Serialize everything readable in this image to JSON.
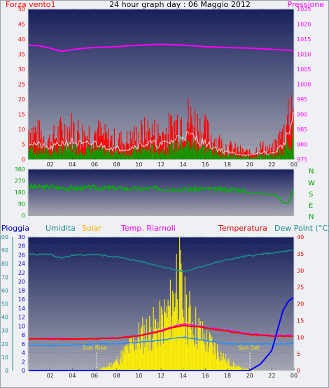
{
  "top": {
    "title": "24 hour graph day : 06 Maggio 2012",
    "left_label": "Forza vento1",
    "right_label": "Pressione"
  },
  "middle": {
    "directions": [
      "N",
      "W",
      "S",
      "E",
      "N"
    ]
  },
  "bottom": {
    "labels": {
      "pioggia": "Pioggia",
      "umidita": "Umidita",
      "solar": "Solar",
      "temp_riarnoli": "Temp. Riarnoli",
      "temperatura": "Temperatura",
      "dew_point": "Dew Point (°C)"
    },
    "sun_rise": "Sun Rise",
    "sun_set": "Sun Set"
  },
  "colors": {
    "bg_top": "#1b2660",
    "bg_bottom": "#9ea0ac",
    "wind": "#ff0000",
    "gust_white": "#d8d8d8",
    "wind_green": "#00a000",
    "pressure": "#ff00ff",
    "direction": "#00b400",
    "humidity": "#1b8a8c",
    "solar": "#ffef00",
    "temp_riarnoli": "#ff00ff",
    "temperature": "#ff0000",
    "dew_point": "#1e90ff",
    "rain": "#0000ff",
    "left_axis_red": "#ff0000",
    "right_axis_magenta": "#ff00ff",
    "right_axis_green": "#00a000"
  },
  "chart_data": [
    {
      "type": "line",
      "title": "24 hour graph day : 06 Maggio 2012",
      "x_ticks": [
        "02",
        "04",
        "06",
        "08",
        "10",
        "12",
        "14",
        "16",
        "18",
        "20",
        "22",
        "00"
      ],
      "left_axis": {
        "label": "Forza vento1",
        "ylim": [
          0,
          50
        ],
        "ticks": [
          0,
          5,
          10,
          15,
          20,
          25,
          30,
          35,
          40,
          45,
          50
        ]
      },
      "right_axis": {
        "label": "Pressione",
        "ylim": [
          975,
          1025
        ],
        "ticks": [
          975,
          980,
          985,
          990,
          995,
          1000,
          1005,
          1010,
          1015,
          1020,
          1025
        ]
      },
      "series": [
        {
          "name": "Pressione",
          "axis": "right",
          "x": [
            0,
            1,
            2,
            3,
            4,
            5,
            6,
            8,
            10,
            12,
            14,
            16,
            18,
            20,
            22,
            23,
            24
          ],
          "values": [
            1013,
            1012.8,
            1012,
            1011,
            1011.5,
            1012,
            1012.2,
            1012.5,
            1013,
            1013.3,
            1013,
            1012.5,
            1012.2,
            1012,
            1011.6,
            1011.4,
            1011.2
          ]
        },
        {
          "name": "Forza vento1",
          "axis": "left",
          "x": [
            0,
            1,
            2,
            3,
            4,
            5,
            6,
            7,
            8,
            9,
            10,
            11,
            12,
            13,
            14,
            15,
            16,
            17,
            18,
            19,
            20,
            21,
            22,
            23,
            24
          ],
          "values": [
            10,
            8,
            6,
            9,
            10,
            8,
            9,
            7,
            6,
            6,
            8,
            9,
            8,
            10,
            14,
            12,
            9,
            6,
            4,
            3,
            2,
            4,
            3,
            8,
            22
          ]
        }
      ]
    },
    {
      "type": "scatter",
      "x_ticks": [
        "02",
        "04",
        "06",
        "08",
        "10",
        "12",
        "14",
        "16",
        "18",
        "20",
        "22",
        "00"
      ],
      "left_axis": {
        "ylim": [
          0,
          360
        ],
        "ticks": [
          0,
          90,
          180,
          270,
          360
        ]
      },
      "right_axis": {
        "ticks": [
          "N",
          "W",
          "S",
          "E",
          "N"
        ]
      },
      "series": [
        {
          "name": "direction",
          "x": [
            0,
            2,
            4,
            6,
            8,
            10,
            12,
            14,
            16,
            18,
            19,
            20,
            21,
            22,
            22.5,
            23,
            23.5,
            24
          ],
          "values": [
            220,
            220,
            210,
            215,
            210,
            205,
            210,
            205,
            205,
            200,
            200,
            170,
            170,
            160,
            150,
            100,
            90,
            220
          ]
        }
      ]
    },
    {
      "type": "line",
      "x_ticks": [
        "02",
        "04",
        "06",
        "08",
        "10",
        "12",
        "14",
        "16",
        "18",
        "20",
        "22",
        "00"
      ],
      "axes": {
        "pioggia": {
          "ylim": [
            0,
            100
          ],
          "ticks": [
            0,
            10,
            20,
            30,
            40,
            50,
            60,
            70,
            80,
            90,
            100
          ]
        },
        "umidita": {
          "ylim": [
            0,
            30
          ],
          "ticks": [
            0,
            2,
            4,
            6,
            8,
            10,
            12,
            14,
            16,
            18,
            20,
            22,
            24,
            26,
            28,
            30
          ]
        },
        "temperature": {
          "ylim": [
            0,
            40
          ],
          "ticks": [
            0,
            5,
            10,
            15,
            20,
            25,
            30,
            35,
            40
          ]
        }
      },
      "series": [
        {
          "name": "Umidita",
          "x": [
            0,
            2,
            3,
            4,
            6,
            8,
            10,
            12,
            13,
            14,
            15,
            16,
            18,
            20,
            22,
            24
          ],
          "values": [
            87,
            87,
            84,
            86,
            87,
            85,
            82,
            78,
            76,
            74,
            76,
            79,
            83,
            86,
            88,
            90
          ]
        },
        {
          "name": "Temp. Riarnoli",
          "x": [
            0,
            2,
            4,
            6,
            8,
            10,
            12,
            13,
            14,
            15,
            16,
            18,
            20,
            22,
            24
          ],
          "values": [
            9.6,
            9.6,
            9.5,
            9.6,
            9.8,
            10.5,
            12,
            13,
            14,
            13.5,
            13,
            12,
            11,
            10.5,
            10.5
          ]
        },
        {
          "name": "Temperatura",
          "x": [
            0,
            2,
            4,
            6,
            8,
            10,
            12,
            13,
            14,
            15,
            16,
            18,
            20,
            22,
            24
          ],
          "values": [
            9.5,
            9.5,
            9.4,
            9.5,
            9.7,
            10.4,
            11.8,
            12.8,
            13.5,
            13.2,
            12.8,
            11.8,
            10.8,
            10.3,
            10.3
          ]
        },
        {
          "name": "Dew Point (°C)",
          "x": [
            0,
            2,
            4,
            6,
            8,
            10,
            12,
            14,
            16,
            18,
            20,
            22,
            24
          ],
          "values": [
            7.5,
            7.5,
            7.5,
            8,
            8,
            8.5,
            9,
            10,
            9,
            8,
            8,
            8,
            8
          ]
        },
        {
          "name": "Solar",
          "x": [
            0,
            5,
            6,
            7,
            8,
            9,
            10,
            11,
            12,
            13,
            13.5,
            14,
            15,
            16,
            17,
            18,
            19,
            20,
            21,
            24
          ],
          "values": [
            0,
            0,
            0,
            20,
            60,
            140,
            220,
            260,
            300,
            420,
            660,
            420,
            300,
            200,
            140,
            60,
            20,
            5,
            0,
            0
          ]
        },
        {
          "name": "Pioggia",
          "x": [
            0,
            20,
            21,
            22,
            22.5,
            23,
            23.5,
            24
          ],
          "values": [
            0,
            0,
            5,
            15,
            30,
            45,
            52,
            55
          ]
        }
      ]
    }
  ]
}
